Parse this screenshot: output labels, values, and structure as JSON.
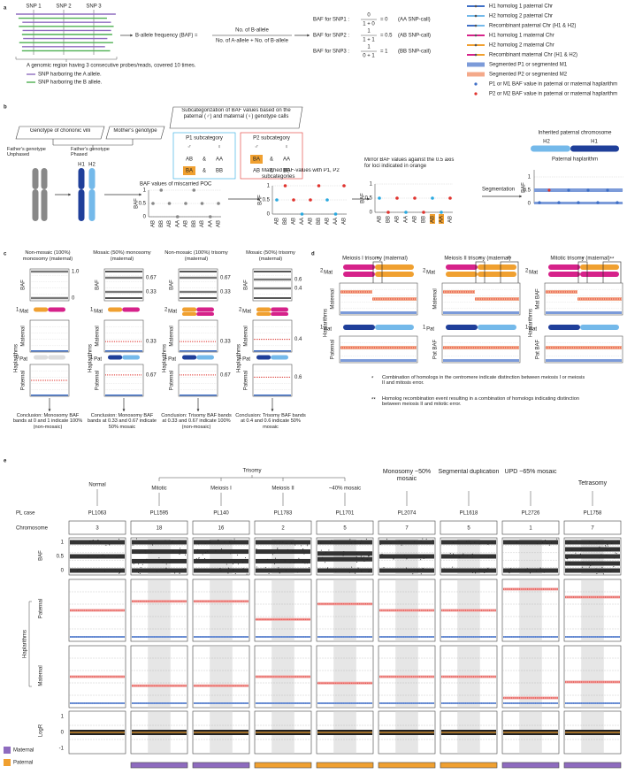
{
  "panel_a": {
    "label": "a",
    "snps": [
      "SNP 1",
      "SNP 2",
      "SNP 3"
    ],
    "region_note": "A genomic region having 3 consecutive probes/reads, covered 10 times.",
    "allele_legend": [
      "SNP harboring the A allele.",
      "SNP harboring the B allele."
    ],
    "formula": {
      "lhs": "B-allele frequency (BAF) =",
      "numerator": "No. of B-allele",
      "denominator": "No. of A-allele + No. of B-allele"
    },
    "baf_rows": [
      {
        "label": "BAF for SNP1 :",
        "numerator": "0",
        "denominator": "1 + 0",
        "result": "= 0",
        "call": "(AA SNP-call)"
      },
      {
        "label": "BAF for SNP2 :",
        "numerator": "1",
        "denominator": "1 + 1",
        "result": "= 0.5",
        "call": "(AB SNP-call)"
      },
      {
        "label": "BAF for SNP3 :",
        "numerator": "1",
        "denominator": "0 + 1",
        "result": "= 1",
        "call": "(BB SNP-call)"
      }
    ]
  },
  "legend": [
    "H1 homolog 1 paternal Chr",
    "H2 homolog 2 paternal Chr",
    "Recombinant paternal Chr (H1 & H2)",
    "H1 homolog 1 maternal Chr",
    "H2 homolog 2 maternal Chr",
    "Recombinant maternal Chr (H1 & H2)",
    "Segmented P1 or segmented M1",
    "Segmented P2 or segmented M2",
    "P1 or M1 BAF value in paternal or maternal haplarithm",
    "P2 or M2 BAF value in paternal or maternal haplarithm"
  ],
  "panel_b": {
    "label": "b",
    "villi": "Genotype of chorionic villi",
    "mother": "Mother's genotype",
    "subcat": "Subcategorization of BAF values based on the paternal (♂) and maternal (♀) genotype calls",
    "father_unphased": "Father's genotype Unphased",
    "father_phased": "Father's genotype Phased",
    "homologs": [
      "H1",
      "H2"
    ],
    "sex": [
      "♂",
      "♀"
    ],
    "p1": {
      "title": "P1 subcategory",
      "rows": [
        [
          "AB",
          "&",
          "AA"
        ],
        [
          "BA",
          "&",
          "BB"
        ]
      ]
    },
    "p2": {
      "title": "P2 subcategory",
      "rows": [
        [
          "BA",
          "&",
          "AA"
        ],
        [
          "AB",
          "&",
          "BB"
        ]
      ]
    },
    "poc_title": "BAF values of miscarried POC",
    "matched_title": "Matched BAF-values with P1, P2 subcategories",
    "mirror_title": "Mirror BAF values against the 0.5 axis for loci indicated in orange",
    "segmentation": "Segmentation",
    "inherited": "Inherited paternal chromosome",
    "inherited_homologs": [
      "H2",
      "H1"
    ],
    "haplarithm": "Paternal haplarithm",
    "axis_label": "BAF",
    "ticks": [
      "0",
      "0.5",
      "1"
    ],
    "genotypes": [
      "AB",
      "BB",
      "AB",
      "AA",
      "AB",
      "BB",
      "AB",
      "AA",
      "AB"
    ]
  },
  "panel_c": {
    "label": "c",
    "baf_label": "BAF",
    "haplarithms": "Haplarithms",
    "maternal": "Maternal",
    "paternal": "Paternal",
    "columns": [
      {
        "title": "Non-mosaic (100%) monosomy (maternal)",
        "baf_bands": [
          "1.0",
          "0"
        ],
        "mat_chr": [
          "1",
          "Mat"
        ],
        "pat_chr": [
          "0",
          "Pat"
        ],
        "conclusion": "Conclusion: Monosomy BAF bands at 0 and 1 indicate 100% (non-mosaic)"
      },
      {
        "title": "Mosaic (50%) monosomy (maternal)",
        "baf_bands": [
          "0.67",
          "0.33"
        ],
        "mat_chr": [
          "1",
          "Mat"
        ],
        "pat_chr": [
          "1",
          "Pat"
        ],
        "mat_band": "0.33",
        "pat_band": "0.67",
        "conclusion": "Conclusion: Monosomy BAF bands at 0.33 and 0.67 indicate 50% mosaic"
      },
      {
        "title": "Non-mosaic (100%) trisomy (maternal)",
        "baf_bands": [
          "0.67",
          "0.33"
        ],
        "mat_chr": [
          "2",
          "Mat"
        ],
        "pat_chr": [
          "1",
          "Pat"
        ],
        "mat_band": "0.33",
        "pat_band": "0.67",
        "conclusion": "Conclusion: Trisomy BAF bands at 0.33 and 0.67 indicate 100% (non-mosaic)"
      },
      {
        "title": "Mosaic (50%) trisomy (maternal)",
        "baf_bands": [
          "0.6",
          "0.4"
        ],
        "mat_chr": [
          "2",
          "Mat"
        ],
        "pat_chr": [
          "1",
          "Pat"
        ],
        "mat_band": "0.4",
        "pat_band": "0.6",
        "conclusion": "Conclusion: Trisomy BAF bands at 0.4 and 0.6 indicate 50% mosaic"
      }
    ]
  },
  "panel_d": {
    "label": "d",
    "mat_chr": [
      "2",
      "Mat"
    ],
    "pat_chr": [
      "1",
      "Pat"
    ],
    "haplarithms": "Haplarithms",
    "columns": [
      {
        "title": "Meiosis I trisomy (maternal)",
        "y_labels": [
          "Maternal",
          "Paternal"
        ]
      },
      {
        "title": "Meiosis II trisomy (maternal)",
        "y_labels": [
          "Maternal",
          "Pat BAF"
        ]
      },
      {
        "title": "Mitotic trisomy (maternal)",
        "y_labels": [
          "Mat BAF",
          "Pat BAF"
        ]
      }
    ],
    "notes": [
      {
        "mark": "*",
        "text": "Combination of homologs in the centromere indicate distinction between meiosis I or meiosis II and mitosis error."
      },
      {
        "mark": "**",
        "text": "Homolog recombination event resulting in a combination of homologs indicating distinction between meiosis II and mitotic error."
      }
    ]
  },
  "panel_e": {
    "label": "e",
    "groups": [
      "Normal",
      "Trisomy",
      "Monosomy ~50% mosaic",
      "Segmental duplication",
      "UPD ~65% mosaic",
      "Tetrasomy"
    ],
    "trisomy_types": [
      "Mitotic",
      "Meiosis I",
      "Meiosis II",
      "~40% mosaic"
    ],
    "row_labels": {
      "case": "PL case",
      "chromosome": "Chromosome",
      "baf": "BAF",
      "paternal": "Paternal",
      "maternal": "Maternal",
      "haplarithms": "Haplarithms",
      "logr": "LogR"
    },
    "baf_ticks": [
      "1",
      "0.5",
      "0"
    ],
    "logr_ticks": [
      "1",
      "0",
      "-1"
    ],
    "origin_legend": [
      "Maternal",
      "Paternal"
    ],
    "cases": [
      {
        "id": "PL1063",
        "chromosome": "3"
      },
      {
        "id": "PL1595",
        "chromosome": "18",
        "origin": "Maternal"
      },
      {
        "id": "PL140",
        "chromosome": "16",
        "origin": "Maternal"
      },
      {
        "id": "PL1783",
        "chromosome": "2",
        "origin": "Paternal"
      },
      {
        "id": "PL1701",
        "chromosome": "5",
        "origin": "Paternal"
      },
      {
        "id": "PL2074",
        "chromosome": "7",
        "origin": "Paternal"
      },
      {
        "id": "PL1618",
        "chromosome": "5",
        "origin": "Paternal"
      },
      {
        "id": "PL2726",
        "chromosome": "1",
        "origin": "Maternal"
      },
      {
        "id": "PL1758",
        "chromosome": "7",
        "origin": "Maternal"
      }
    ]
  }
}
